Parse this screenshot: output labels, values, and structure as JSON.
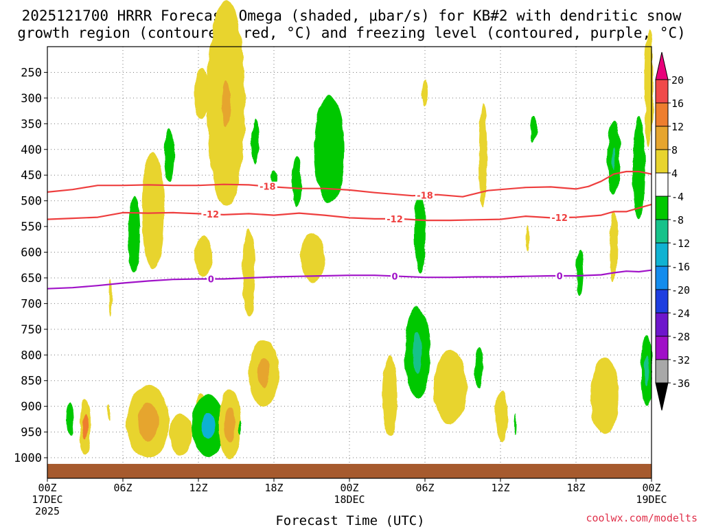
{
  "title": {
    "line1": "2025121700 HRRR Forecast Omega (shaded, μbar/s) for KB#2 with dendritic snow",
    "line2": "growth region (contoured, red, °C) and freezing level (contoured, purple, °C)"
  },
  "chart_data": {
    "type": "heatmap",
    "title": "2025121700 HRRR Forecast Omega (shaded, μbar/s) for KB#2 with dendritic snow growth region (contoured, red, °C) and freezing level (contoured, purple, °C)",
    "xlabel": "Forecast Time (UTC)",
    "ylabel": "Pressure (hPa)",
    "x_unit": "forecast hour",
    "xlim": [
      0,
      48
    ],
    "ylim": [
      1040,
      200
    ],
    "y_ticks": [
      250,
      300,
      350,
      400,
      450,
      500,
      550,
      600,
      650,
      700,
      750,
      800,
      850,
      900,
      950,
      1000
    ],
    "x_ticks": [
      {
        "hour": 0,
        "label": "00Z",
        "sub1": "17DEC",
        "sub2": "2025"
      },
      {
        "hour": 6,
        "label": "06Z",
        "sub1": "",
        "sub2": ""
      },
      {
        "hour": 12,
        "label": "12Z",
        "sub1": "",
        "sub2": ""
      },
      {
        "hour": 18,
        "label": "18Z",
        "sub1": "",
        "sub2": ""
      },
      {
        "hour": 24,
        "label": "00Z",
        "sub1": "18DEC",
        "sub2": ""
      },
      {
        "hour": 30,
        "label": "06Z",
        "sub1": "",
        "sub2": ""
      },
      {
        "hour": 36,
        "label": "12Z",
        "sub1": "",
        "sub2": ""
      },
      {
        "hour": 42,
        "label": "18Z",
        "sub1": "",
        "sub2": ""
      },
      {
        "hour": 48,
        "label": "00Z",
        "sub1": "19DEC",
        "sub2": ""
      }
    ],
    "colorbar": {
      "labels": [
        20,
        16,
        12,
        8,
        4,
        -4,
        -8,
        -12,
        -16,
        -20,
        -24,
        -28,
        -32,
        -36
      ],
      "top_color": "#e8007a",
      "bottom_color": "#000000",
      "bins": [
        {
          "lo": 16,
          "hi": 20,
          "color": "#f04a4a"
        },
        {
          "lo": 12,
          "hi": 16,
          "color": "#ee7e2e"
        },
        {
          "lo": 8,
          "hi": 12,
          "color": "#e6a52e"
        },
        {
          "lo": 4,
          "hi": 8,
          "color": "#e8d42e"
        },
        {
          "lo": -4,
          "hi": 4,
          "color": "#ffffff"
        },
        {
          "lo": -8,
          "hi": -4,
          "color": "#00c800"
        },
        {
          "lo": -12,
          "hi": -8,
          "color": "#16c28a"
        },
        {
          "lo": -16,
          "hi": -12,
          "color": "#10b2d2"
        },
        {
          "lo": -20,
          "hi": -16,
          "color": "#148ced"
        },
        {
          "lo": -24,
          "hi": -20,
          "color": "#1e3ee0"
        },
        {
          "lo": -28,
          "hi": -24,
          "color": "#6e16cc"
        },
        {
          "lo": -32,
          "hi": -28,
          "color": "#a010c8"
        },
        {
          "lo": -36,
          "hi": -32,
          "color": "#a8a8a8"
        }
      ]
    },
    "omega_cells": [
      {
        "t": 1.8,
        "p": 925,
        "dt": 0.3,
        "dp": 32,
        "v": -6
      },
      {
        "t": 3.0,
        "p": 940,
        "dt": 0.45,
        "dp": 55,
        "v": 6,
        "core": 14,
        "ct": 0.25,
        "cp": 25
      },
      {
        "t": 4.9,
        "p": 912,
        "dt": 0.12,
        "dp": 16,
        "v": 5
      },
      {
        "t": 5.0,
        "p": 688,
        "dt": 0.12,
        "dp": 36,
        "v": 5
      },
      {
        "t": 6.9,
        "p": 565,
        "dt": 0.45,
        "dp": 75,
        "v": -6
      },
      {
        "t": 8.0,
        "p": 930,
        "dt": 1.7,
        "dp": 70,
        "v": 6,
        "core": 10,
        "ct": 0.8,
        "cp": 38
      },
      {
        "t": 8.4,
        "p": 520,
        "dt": 0.9,
        "dp": 115,
        "v": 5
      },
      {
        "t": 9.7,
        "p": 410,
        "dt": 0.4,
        "dp": 52,
        "v": -6
      },
      {
        "t": 10.6,
        "p": 955,
        "dt": 0.9,
        "dp": 40,
        "v": 5
      },
      {
        "t": 12.2,
        "p": 895,
        "dt": 0.35,
        "dp": 20,
        "v": 5
      },
      {
        "t": 12.3,
        "p": 290,
        "dt": 0.6,
        "dp": 50,
        "v": 5
      },
      {
        "t": 12.4,
        "p": 608,
        "dt": 0.7,
        "dp": 40,
        "v": 5
      },
      {
        "t": 12.8,
        "p": 938,
        "dt": 1.35,
        "dp": 60,
        "v": -7,
        "core": -14,
        "ct": 0.55,
        "cp": 25
      },
      {
        "t": 14.2,
        "p": 310,
        "dt": 1.5,
        "dp": 200,
        "v": 5,
        "core": 9,
        "ct": 0.35,
        "cp": 45
      },
      {
        "t": 14.5,
        "p": 935,
        "dt": 0.85,
        "dp": 68,
        "v": 6,
        "core": 11,
        "ct": 0.4,
        "cp": 35
      },
      {
        "t": 15.3,
        "p": 942,
        "dt": 0.1,
        "dp": 12,
        "v": -6
      },
      {
        "t": 16.0,
        "p": 640,
        "dt": 0.5,
        "dp": 85,
        "v": 5
      },
      {
        "t": 16.5,
        "p": 385,
        "dt": 0.3,
        "dp": 45,
        "v": -6
      },
      {
        "t": 17.2,
        "p": 835,
        "dt": 1.2,
        "dp": 65,
        "v": 6,
        "core": 10,
        "ct": 0.5,
        "cp": 30
      },
      {
        "t": 18.0,
        "p": 455,
        "dt": 0.25,
        "dp": 15,
        "v": -6
      },
      {
        "t": 19.8,
        "p": 462,
        "dt": 0.38,
        "dp": 50,
        "v": -6
      },
      {
        "t": 21.1,
        "p": 610,
        "dt": 0.95,
        "dp": 48,
        "v": 5
      },
      {
        "t": 22.4,
        "p": 400,
        "dt": 1.2,
        "dp": 105,
        "v": -6
      },
      {
        "t": 27.2,
        "p": 880,
        "dt": 0.6,
        "dp": 78,
        "v": 5
      },
      {
        "t": 29.4,
        "p": 795,
        "dt": 1.0,
        "dp": 90,
        "v": -6,
        "core": -10,
        "ct": 0.35,
        "cp": 40
      },
      {
        "t": 29.6,
        "p": 560,
        "dt": 0.45,
        "dp": 80,
        "v": -6
      },
      {
        "t": 30.0,
        "p": 290,
        "dt": 0.22,
        "dp": 25,
        "v": 5
      },
      {
        "t": 32.0,
        "p": 862,
        "dt": 1.3,
        "dp": 72,
        "v": 5
      },
      {
        "t": 34.3,
        "p": 825,
        "dt": 0.32,
        "dp": 40,
        "v": -6
      },
      {
        "t": 34.6,
        "p": 410,
        "dt": 0.33,
        "dp": 100,
        "v": 5
      },
      {
        "t": 36.1,
        "p": 920,
        "dt": 0.5,
        "dp": 50,
        "v": 5
      },
      {
        "t": 37.2,
        "p": 935,
        "dt": 0.08,
        "dp": 22,
        "v": -6
      },
      {
        "t": 38.2,
        "p": 572,
        "dt": 0.12,
        "dp": 26,
        "v": 5
      },
      {
        "t": 38.6,
        "p": 360,
        "dt": 0.22,
        "dp": 25,
        "v": -6
      },
      {
        "t": 42.3,
        "p": 640,
        "dt": 0.28,
        "dp": 45,
        "v": -6
      },
      {
        "t": 44.3,
        "p": 880,
        "dt": 1.15,
        "dp": 75,
        "v": 5
      },
      {
        "t": 45.0,
        "p": 418,
        "dt": 0.5,
        "dp": 72,
        "v": -6,
        "core": -10,
        "ct": 0.12,
        "cp": 22
      },
      {
        "t": 45.0,
        "p": 590,
        "dt": 0.32,
        "dp": 70,
        "v": 5
      },
      {
        "t": 47.0,
        "p": 435,
        "dt": 0.5,
        "dp": 100,
        "v": -6
      },
      {
        "t": 47.6,
        "p": 830,
        "dt": 0.45,
        "dp": 70,
        "v": -6,
        "core": -9,
        "ct": 0.2,
        "cp": 30
      },
      {
        "t": 47.8,
        "p": 280,
        "dt": 0.35,
        "dp": 115,
        "v": 5
      }
    ],
    "contours": [
      {
        "name": "dendritic -18",
        "level": -18,
        "label": "-18",
        "color": "#ee3e3e",
        "label_hours": [
          17.5,
          30.0
        ],
        "t": [
          0,
          2,
          4,
          6,
          8,
          10,
          12,
          14,
          16,
          18,
          20,
          22,
          24,
          26,
          28,
          29,
          31,
          33,
          35,
          36,
          38,
          40,
          42,
          43,
          44,
          45,
          46,
          47,
          48
        ],
        "p": [
          483,
          478,
          470,
          470,
          469,
          470,
          470,
          468,
          469,
          473,
          476,
          476,
          479,
          484,
          488,
          490,
          488,
          492,
          480,
          478,
          474,
          473,
          477,
          472,
          462,
          448,
          443,
          443,
          448
        ]
      },
      {
        "name": "dendritic -12",
        "level": -12,
        "label": "-12",
        "color": "#ee3e3e",
        "label_hours": [
          13.0,
          27.6,
          40.7
        ],
        "t": [
          0,
          2,
          4,
          6,
          8,
          10,
          12,
          14,
          16,
          18,
          20,
          22,
          24,
          26,
          28,
          30,
          32,
          34,
          36,
          38,
          40,
          42,
          44,
          45,
          46,
          47,
          48
        ],
        "p": [
          536,
          534,
          532,
          523,
          524,
          523,
          525,
          527,
          525,
          528,
          524,
          528,
          533,
          535,
          535,
          538,
          538,
          537,
          536,
          530,
          533,
          532,
          528,
          521,
          521,
          514,
          507
        ]
      },
      {
        "name": "freezing level 0",
        "level": 0,
        "label": "0",
        "color": "#a012c8",
        "label_hours": [
          13.0,
          27.6,
          40.7
        ],
        "t": [
          0,
          2,
          4,
          6,
          8,
          10,
          12,
          14,
          16,
          18,
          20,
          22,
          24,
          26,
          28,
          30,
          32,
          34,
          36,
          38,
          40,
          42,
          44,
          45,
          46,
          47,
          48
        ],
        "p": [
          671,
          669,
          665,
          660,
          656,
          653,
          652,
          652,
          650,
          648,
          647,
          646,
          645,
          645,
          647,
          649,
          649,
          648,
          648,
          647,
          646,
          646,
          644,
          640,
          637,
          638,
          635
        ]
      }
    ],
    "ground": {
      "color": "#a65a2e",
      "p_top": 1012
    }
  },
  "xlabel": "Forecast Time (UTC)",
  "credit": "coolwx.com/modelts"
}
